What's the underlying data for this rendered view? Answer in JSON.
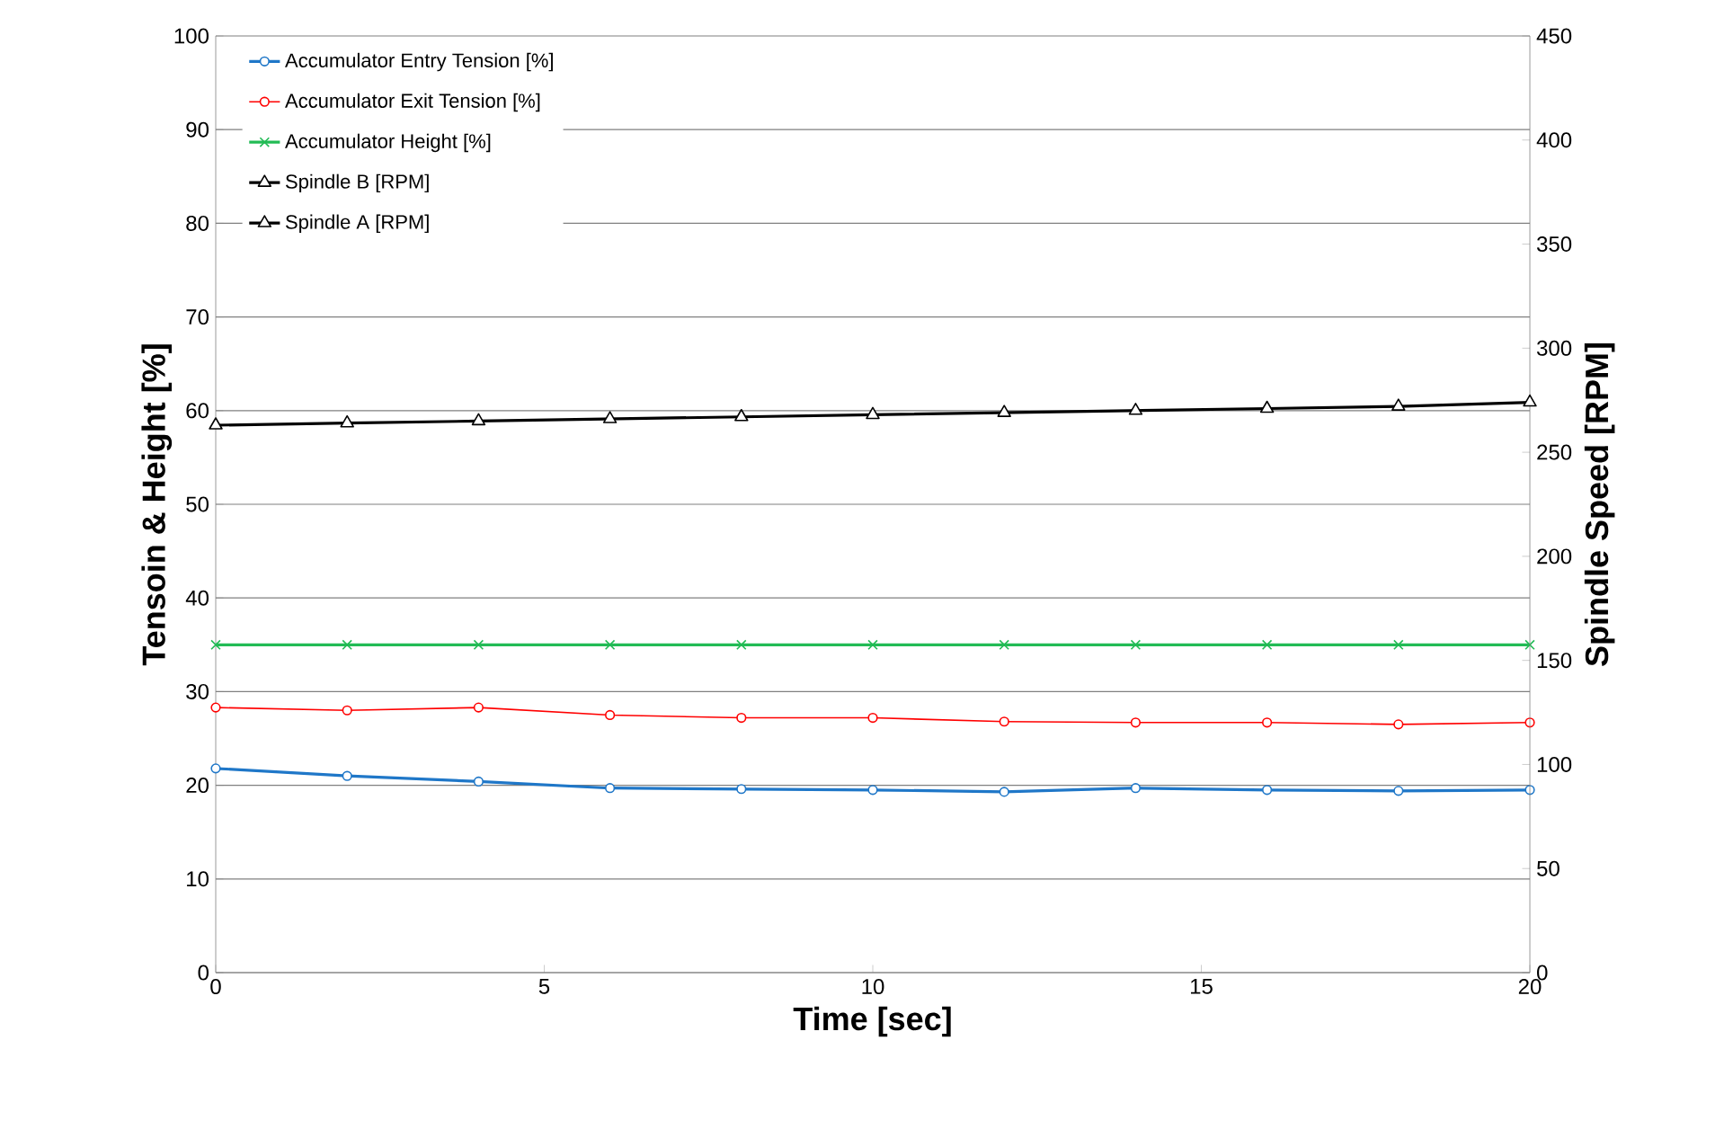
{
  "chart_data": {
    "type": "line",
    "xlabel": "Time [sec]",
    "ylabel": "Tensoin & Height [%]",
    "y2label": "Spindle Speed [RPM]",
    "x": [
      0,
      2,
      4,
      6,
      8,
      10,
      12,
      14,
      16,
      18,
      20
    ],
    "xlim": [
      0,
      20
    ],
    "xticks": [
      0,
      5,
      10,
      15,
      20
    ],
    "ylim": [
      0,
      100
    ],
    "yticks": [
      0,
      10,
      20,
      30,
      40,
      50,
      60,
      70,
      80,
      90,
      100
    ],
    "y2lim": [
      0,
      450
    ],
    "y2ticks": [
      0,
      50,
      100,
      150,
      200,
      250,
      300,
      350,
      400,
      450
    ],
    "grid": "y",
    "legend": "top left",
    "series": [
      {
        "name": "Accumulator Entry Tension [%]",
        "color": "#1f77c8",
        "marker": "circle",
        "values": [
          21.8,
          21.0,
          20.4,
          19.7,
          19.6,
          19.5,
          19.3,
          19.7,
          19.5,
          19.4,
          19.5
        ]
      },
      {
        "name": "Accumulator Exit Tension [%]",
        "color": "#ff0000",
        "marker": "circle",
        "values": [
          28.3,
          28.0,
          28.3,
          27.5,
          27.2,
          27.2,
          26.8,
          26.7,
          26.7,
          26.5,
          26.7
        ]
      },
      {
        "name": "Accumulator Height [%]",
        "color": "#22bb55",
        "marker": "cross",
        "values": [
          35,
          35,
          35,
          35,
          35,
          35,
          35,
          35,
          35,
          35,
          35
        ]
      },
      {
        "name": "Spindle B [RPM]",
        "color": "#000000",
        "marker": "triangle",
        "axis": "y2",
        "values": [
          null,
          null,
          null,
          null,
          null,
          null,
          null,
          null,
          null,
          null,
          null
        ]
      },
      {
        "name": "Spindle A [RPM]",
        "color": "#000000",
        "marker": "triangle",
        "axis": "y2",
        "values": [
          263,
          264,
          265,
          266,
          267,
          268,
          269,
          270,
          271,
          272,
          274
        ]
      }
    ]
  }
}
